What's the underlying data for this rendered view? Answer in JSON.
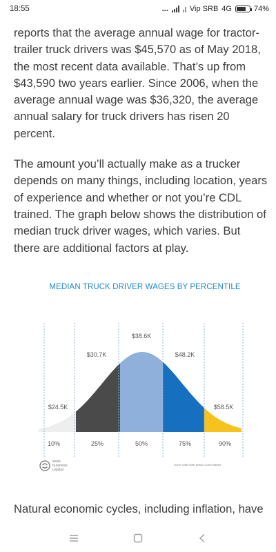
{
  "status": {
    "time": "18:55",
    "dots": "...",
    "carrier": "Vip SRB",
    "network": "4G",
    "battery_text": "74%",
    "battery_level": 0.74
  },
  "article": {
    "paragraph1": "reports that the average annual wage for tractor-trailer truck drivers was $45,570 as of May 2018, the most recent data available. That’s up from $43,590 two years earlier. Since 2006, when the average annual wage was $36,320, the average annual salary for truck drivers has risen 20 percent.",
    "paragraph2": "The amount you’ll actually make as a trucker depends on many things, including location, years of experience and whether or not you’re CDL trained. The graph below shows the distribution of median truck driver wages, which varies. But there are additional factors at play.",
    "paragraph3_partial": "Natural economic cycles, including inflation, have"
  },
  "chart_data": {
    "type": "area",
    "title": "MEDIAN TRUCK DRIVER WAGES BY PERCENTILE",
    "categories": [
      "10%",
      "25%",
      "50%",
      "75%",
      "90%"
    ],
    "value_labels": [
      "$24.5K",
      "$30.7K",
      "$38.6K",
      "$48.2K",
      "$58.5K"
    ],
    "values": [
      24.5,
      30.7,
      38.6,
      48.2,
      58.5
    ],
    "segment_colors": [
      "#eeeeee",
      "#4a4a4a",
      "#8fb0da",
      "#1670bf",
      "#f7c21b"
    ],
    "source": "Source: United States Bureau of Labor Statistics"
  },
  "logo": {
    "line1": "seek",
    "line2": "business",
    "line3": "capital"
  },
  "nav": {
    "menu_icon": "menu-icon",
    "home_icon": "square-icon",
    "back_icon": "back-chevron-icon"
  }
}
